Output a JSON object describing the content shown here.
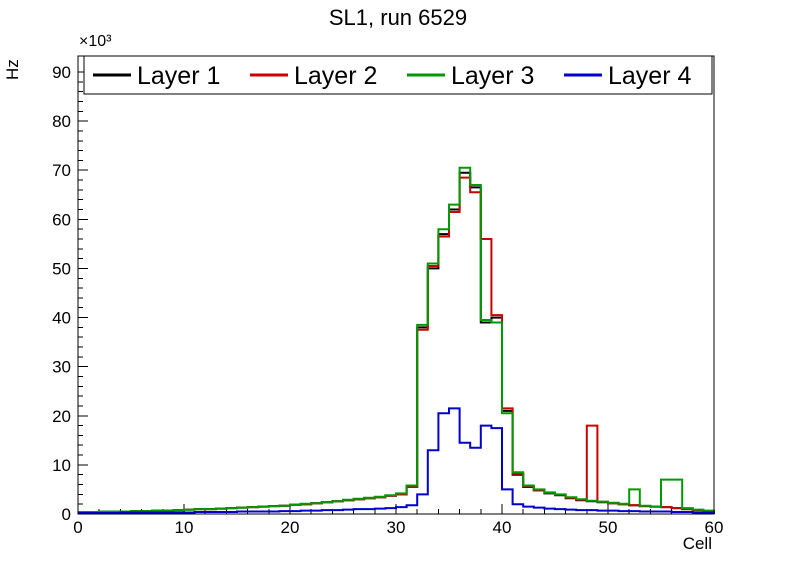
{
  "title": "SL1, run 6529",
  "axes": {
    "xlabel": "Cell",
    "ylabel": "Hz",
    "y_multiplier": "×10³",
    "xlim": [
      0,
      60
    ],
    "ylim": [
      0,
      90
    ],
    "xticks": [
      0,
      10,
      20,
      30,
      40,
      50,
      60
    ],
    "yticks": [
      0,
      10,
      20,
      30,
      40,
      50,
      60,
      70,
      80,
      90
    ],
    "x_minor_step": 2,
    "y_minor_step": 2
  },
  "legend": {
    "position": "top",
    "entries": [
      {
        "label": "Layer 1",
        "color": "#000000"
      },
      {
        "label": "Layer 2",
        "color": "#cc0000"
      },
      {
        "label": "Layer 3",
        "color": "#009900"
      },
      {
        "label": "Layer 4",
        "color": "#0000cc"
      }
    ]
  },
  "chart_data": {
    "type": "line",
    "subtype": "step-histogram",
    "title": "SL1, run 6529",
    "xlabel": "Cell",
    "ylabel": "Hz",
    "y_units": "kHz (axis shows ×10³ Hz)",
    "xlim": [
      0,
      60
    ],
    "ylim": [
      0,
      90
    ],
    "grid": false,
    "legend_position": "top",
    "bin_width": 1,
    "x": [
      0,
      1,
      2,
      3,
      4,
      5,
      6,
      7,
      8,
      9,
      10,
      11,
      12,
      13,
      14,
      15,
      16,
      17,
      18,
      19,
      20,
      21,
      22,
      23,
      24,
      25,
      26,
      27,
      28,
      29,
      30,
      31,
      32,
      33,
      34,
      35,
      36,
      37,
      38,
      39,
      40,
      41,
      42,
      43,
      44,
      45,
      46,
      47,
      48,
      49,
      50,
      51,
      52,
      53,
      54,
      55,
      56,
      57,
      58,
      59
    ],
    "series": [
      {
        "name": "Layer 1",
        "color": "#000000",
        "values": [
          0.4,
          0.4,
          0.5,
          0.5,
          0.5,
          0.6,
          0.6,
          0.7,
          0.7,
          0.8,
          0.9,
          1.0,
          1.0,
          1.1,
          1.2,
          1.3,
          1.4,
          1.5,
          1.6,
          1.7,
          1.9,
          2.0,
          2.2,
          2.4,
          2.6,
          2.8,
          3.0,
          3.2,
          3.4,
          3.7,
          4.0,
          5.5,
          38.0,
          50.0,
          57.0,
          62.0,
          69.5,
          66.5,
          39.0,
          40.0,
          21.0,
          8.0,
          5.5,
          4.8,
          4.2,
          3.8,
          3.2,
          2.8,
          2.6,
          2.4,
          2.2,
          2.0,
          1.8,
          1.6,
          1.5,
          1.4,
          1.2,
          1.0,
          0.8,
          0.6
        ]
      },
      {
        "name": "Layer 2",
        "color": "#cc0000",
        "values": [
          0.4,
          0.4,
          0.5,
          0.5,
          0.5,
          0.6,
          0.6,
          0.7,
          0.7,
          0.8,
          0.9,
          1.0,
          1.0,
          1.1,
          1.2,
          1.3,
          1.4,
          1.5,
          1.6,
          1.7,
          1.9,
          2.0,
          2.2,
          2.4,
          2.6,
          2.8,
          3.0,
          3.2,
          3.4,
          3.7,
          4.0,
          5.5,
          37.5,
          50.5,
          56.5,
          61.5,
          68.5,
          65.5,
          56.0,
          40.5,
          21.5,
          8.2,
          5.6,
          4.9,
          4.3,
          3.9,
          3.3,
          2.9,
          18.0,
          2.5,
          2.2,
          2.0,
          1.8,
          1.6,
          1.5,
          1.4,
          1.2,
          1.0,
          0.8,
          0.6
        ]
      },
      {
        "name": "Layer 3",
        "color": "#009900",
        "values": [
          0.4,
          0.4,
          0.5,
          0.5,
          0.5,
          0.6,
          0.6,
          0.7,
          0.7,
          0.8,
          0.9,
          1.0,
          1.0,
          1.1,
          1.2,
          1.3,
          1.4,
          1.5,
          1.6,
          1.7,
          1.9,
          2.1,
          2.2,
          2.4,
          2.6,
          2.9,
          3.1,
          3.3,
          3.5,
          3.8,
          4.2,
          5.8,
          38.5,
          51.0,
          58.0,
          63.0,
          70.5,
          67.0,
          39.5,
          39.0,
          20.5,
          8.5,
          5.8,
          5.0,
          4.4,
          4.0,
          3.4,
          3.0,
          2.7,
          2.5,
          2.3,
          2.1,
          5.0,
          1.7,
          1.5,
          7.0,
          7.0,
          1.2,
          0.9,
          0.7
        ]
      },
      {
        "name": "Layer 4",
        "color": "#0000cc",
        "values": [
          0.2,
          0.2,
          0.2,
          0.2,
          0.3,
          0.3,
          0.3,
          0.3,
          0.3,
          0.3,
          0.3,
          0.4,
          0.4,
          0.4,
          0.4,
          0.5,
          0.5,
          0.5,
          0.5,
          0.6,
          0.6,
          0.7,
          0.7,
          0.8,
          0.8,
          0.9,
          1.0,
          1.0,
          1.1,
          1.2,
          1.4,
          1.8,
          4.0,
          13.0,
          20.5,
          21.5,
          14.5,
          13.5,
          18.0,
          17.5,
          5.0,
          2.0,
          1.5,
          1.3,
          1.1,
          1.0,
          0.9,
          0.8,
          0.8,
          0.7,
          0.7,
          0.6,
          0.6,
          0.5,
          0.5,
          0.5,
          0.4,
          0.4,
          0.3,
          0.3
        ]
      }
    ]
  }
}
